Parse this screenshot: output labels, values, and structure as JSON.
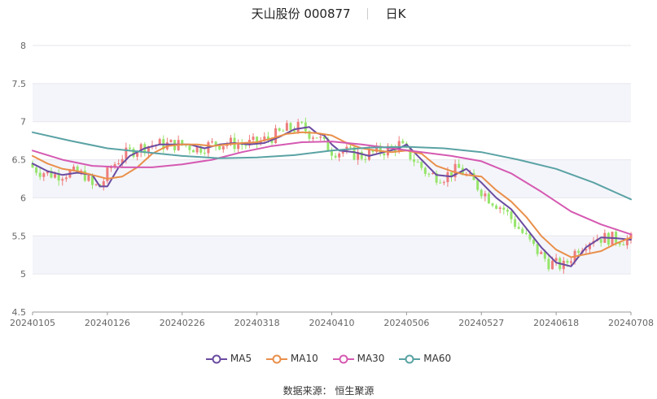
{
  "header": {
    "stock_name": "天山股份 000877",
    "period": "日K"
  },
  "footer": {
    "source_label": "数据来源：",
    "source_name": "恒生聚源"
  },
  "colors": {
    "up": "#ee7c7c",
    "down": "#96e56b",
    "band": "#f4f5fa",
    "grid": "#e6e6ee"
  },
  "chart_data": {
    "type": "candlestick",
    "ylim": [
      4.5,
      8
    ],
    "yticks": [
      "4.5",
      "5",
      "5.5",
      "6",
      "6.5",
      "7",
      "7.5",
      "8"
    ],
    "xticks": [
      "20240105",
      "20240126",
      "20240226",
      "20240318",
      "20240410",
      "20240506",
      "20240527",
      "20240618",
      "20240708"
    ],
    "xtick_index": [
      0,
      20,
      40,
      60,
      80,
      100,
      120,
      140,
      160
    ],
    "n_days": 161,
    "series": [
      {
        "name": "MA5",
        "color": "#6a4ba0",
        "x": [
          0,
          4,
          8,
          12,
          16,
          18,
          20,
          23,
          26,
          30,
          34,
          38,
          42,
          46,
          50,
          54,
          58,
          62,
          66,
          70,
          74,
          76,
          78,
          80,
          82,
          86,
          90,
          94,
          98,
          100,
          102,
          104,
          108,
          112,
          116,
          120,
          124,
          128,
          132,
          136,
          140,
          144,
          148,
          152,
          156,
          160
        ],
        "y": [
          6.45,
          6.35,
          6.3,
          6.33,
          6.3,
          6.15,
          6.15,
          6.4,
          6.55,
          6.65,
          6.7,
          6.7,
          6.7,
          6.65,
          6.7,
          6.72,
          6.7,
          6.72,
          6.8,
          6.9,
          6.93,
          6.85,
          6.82,
          6.7,
          6.62,
          6.6,
          6.55,
          6.6,
          6.65,
          6.7,
          6.6,
          6.5,
          6.3,
          6.28,
          6.38,
          6.2,
          6.0,
          5.85,
          5.6,
          5.35,
          5.15,
          5.1,
          5.35,
          5.48,
          5.47,
          5.45
        ]
      },
      {
        "name": "MA10",
        "color": "#e98f4a",
        "x": [
          0,
          4,
          8,
          12,
          16,
          20,
          24,
          28,
          32,
          36,
          40,
          44,
          48,
          52,
          56,
          60,
          64,
          68,
          72,
          76,
          80,
          84,
          88,
          92,
          96,
          100,
          104,
          108,
          112,
          116,
          120,
          124,
          128,
          132,
          136,
          140,
          144,
          148,
          152,
          156,
          160
        ],
        "y": [
          6.55,
          6.45,
          6.38,
          6.35,
          6.3,
          6.25,
          6.28,
          6.4,
          6.58,
          6.68,
          6.7,
          6.7,
          6.68,
          6.7,
          6.72,
          6.73,
          6.78,
          6.84,
          6.86,
          6.85,
          6.82,
          6.72,
          6.65,
          6.62,
          6.6,
          6.62,
          6.58,
          6.42,
          6.35,
          6.3,
          6.28,
          6.1,
          5.95,
          5.75,
          5.5,
          5.32,
          5.22,
          5.26,
          5.3,
          5.4,
          5.48
        ]
      },
      {
        "name": "MA30",
        "color": "#d55ab2",
        "x": [
          0,
          8,
          16,
          24,
          32,
          40,
          48,
          56,
          64,
          72,
          80,
          88,
          96,
          104,
          112,
          120,
          128,
          136,
          144,
          152,
          160
        ],
        "y": [
          6.62,
          6.5,
          6.42,
          6.4,
          6.4,
          6.44,
          6.5,
          6.6,
          6.68,
          6.73,
          6.74,
          6.7,
          6.65,
          6.6,
          6.55,
          6.48,
          6.32,
          6.08,
          5.82,
          5.65,
          5.52
        ]
      },
      {
        "name": "MA60",
        "color": "#5aa2a4",
        "x": [
          0,
          10,
          20,
          30,
          40,
          50,
          60,
          70,
          80,
          90,
          100,
          110,
          120,
          130,
          140,
          150,
          160
        ],
        "y": [
          6.86,
          6.75,
          6.65,
          6.6,
          6.55,
          6.52,
          6.53,
          6.56,
          6.62,
          6.66,
          6.67,
          6.65,
          6.6,
          6.5,
          6.38,
          6.2,
          5.98
        ]
      }
    ],
    "legend_position": "bottom-center",
    "grid": true
  }
}
